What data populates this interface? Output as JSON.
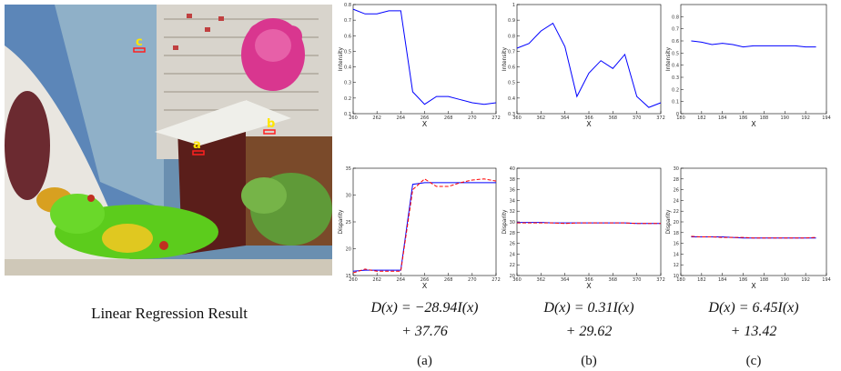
{
  "image_labels": [
    "c",
    "b",
    "a"
  ],
  "caption": "Linear Regression Result",
  "equations": [
    [
      "D(x) = −28.94I(x)",
      "+ 37.76"
    ],
    [
      "D(x) = 0.31I(x)",
      "+ 29.62"
    ],
    [
      "D(x) = 6.45I(x)",
      "+ 13.42"
    ]
  ],
  "subcaptions": [
    "(a)",
    "(b)",
    "(c)"
  ],
  "chart_data": [
    {
      "type": "line",
      "y_label": "Intensity",
      "x_label": "X",
      "x": [
        260,
        261,
        262,
        263,
        264,
        265,
        266,
        267,
        268,
        269,
        270,
        271,
        272
      ],
      "series": [
        {
          "color": "#0000ff",
          "values": [
            0.77,
            0.74,
            0.74,
            0.76,
            0.76,
            0.24,
            0.16,
            0.21,
            0.21,
            0.19,
            0.17,
            0.16,
            0.17
          ]
        }
      ],
      "xlim": [
        260,
        272
      ],
      "xticks": [
        260,
        262,
        264,
        266,
        268,
        270,
        272
      ],
      "ylim": [
        0.1,
        0.8
      ],
      "yticks": [
        0.1,
        0.2,
        0.3,
        0.4,
        0.5,
        0.6,
        0.7,
        0.8
      ]
    },
    {
      "type": "line",
      "y_label": "Intensity",
      "x_label": "X",
      "x": [
        360,
        361,
        362,
        363,
        364,
        365,
        366,
        367,
        368,
        369,
        370,
        371,
        372
      ],
      "series": [
        {
          "color": "#0000ff",
          "values": [
            0.72,
            0.75,
            0.83,
            0.88,
            0.73,
            0.41,
            0.56,
            0.64,
            0.59,
            0.68,
            0.41,
            0.34,
            0.37
          ]
        }
      ],
      "xlim": [
        360,
        372
      ],
      "xticks": [
        360,
        362,
        364,
        366,
        368,
        370,
        372
      ],
      "ylim": [
        0.3,
        1
      ],
      "yticks": [
        0.3,
        0.4,
        0.5,
        0.6,
        0.7,
        0.8,
        0.9,
        1
      ]
    },
    {
      "type": "line",
      "y_label": "Intensity",
      "x_label": "X",
      "x": [
        181,
        182,
        183,
        184,
        185,
        186,
        187,
        188,
        189,
        190,
        191,
        192,
        193
      ],
      "series": [
        {
          "color": "#0000ff",
          "values": [
            0.6,
            0.59,
            0.57,
            0.58,
            0.57,
            0.55,
            0.56,
            0.56,
            0.56,
            0.56,
            0.56,
            0.55,
            0.55
          ]
        }
      ],
      "xlim": [
        180,
        194
      ],
      "xticks": [
        180,
        182,
        184,
        186,
        188,
        190,
        192,
        194
      ],
      "ylim": [
        0,
        0.9
      ],
      "yticks": [
        0,
        0.1,
        0.2,
        0.3,
        0.4,
        0.5,
        0.6,
        0.7,
        0.8
      ]
    },
    {
      "type": "line",
      "y_label": "Disparity",
      "x_label": "X",
      "x": [
        260,
        261,
        262,
        263,
        264,
        265,
        266,
        267,
        268,
        269,
        270,
        271,
        272
      ],
      "series": [
        {
          "color": "#0000ff",
          "linestyle": "solid",
          "values": [
            15.8,
            16,
            16,
            16,
            16,
            32,
            32.3,
            32.3,
            32.3,
            32.3,
            32.3,
            32.3,
            32.3
          ]
        },
        {
          "color": "#ff0000",
          "linestyle": "dashed",
          "values": [
            15.5,
            16.2,
            15.8,
            15.8,
            15.8,
            31,
            33,
            31.6,
            31.6,
            32.3,
            32.8,
            33,
            32.6
          ]
        }
      ],
      "xlim": [
        260,
        272
      ],
      "xticks": [
        260,
        262,
        264,
        266,
        268,
        270,
        272
      ],
      "ylim": [
        15,
        35
      ],
      "yticks": [
        15,
        20,
        25,
        30,
        35
      ]
    },
    {
      "type": "line",
      "y_label": "Disparity",
      "x_label": "X",
      "x": [
        360,
        361,
        362,
        363,
        364,
        365,
        366,
        367,
        368,
        369,
        370,
        371,
        372
      ],
      "series": [
        {
          "color": "#0000ff",
          "linestyle": "solid",
          "values": [
            29.9,
            29.9,
            29.9,
            29.8,
            29.8,
            29.8,
            29.8,
            29.8,
            29.8,
            29.8,
            29.7,
            29.7,
            29.7
          ]
        },
        {
          "color": "#ff0000",
          "linestyle": "dashed",
          "values": [
            29.8,
            29.8,
            29.8,
            29.8,
            29.7,
            29.8,
            29.8,
            29.8,
            29.8,
            29.8,
            29.7,
            29.7,
            29.7
          ]
        }
      ],
      "xlim": [
        360,
        372
      ],
      "xticks": [
        360,
        362,
        364,
        366,
        368,
        370,
        372
      ],
      "ylim": [
        20,
        40
      ],
      "yticks": [
        20,
        22,
        24,
        26,
        28,
        30,
        32,
        34,
        36,
        38,
        40
      ]
    },
    {
      "type": "line",
      "y_label": "Disparity",
      "x_label": "X",
      "x": [
        181,
        182,
        183,
        184,
        185,
        186,
        187,
        188,
        189,
        190,
        191,
        192,
        193
      ],
      "series": [
        {
          "color": "#0000ff",
          "linestyle": "solid",
          "values": [
            17.2,
            17.2,
            17.2,
            17.2,
            17.1,
            17,
            17,
            17,
            17,
            17,
            17,
            17,
            17
          ]
        },
        {
          "color": "#ff0000",
          "linestyle": "dashed",
          "values": [
            17.3,
            17.2,
            17.2,
            17.1,
            17.1,
            17.1,
            17,
            17,
            17,
            17,
            17,
            17,
            17.1
          ]
        }
      ],
      "xlim": [
        180,
        194
      ],
      "xticks": [
        180,
        182,
        184,
        186,
        188,
        190,
        192,
        194
      ],
      "ylim": [
        10,
        30
      ],
      "yticks": [
        10,
        12,
        14,
        16,
        18,
        20,
        22,
        24,
        26,
        28,
        30
      ]
    }
  ]
}
